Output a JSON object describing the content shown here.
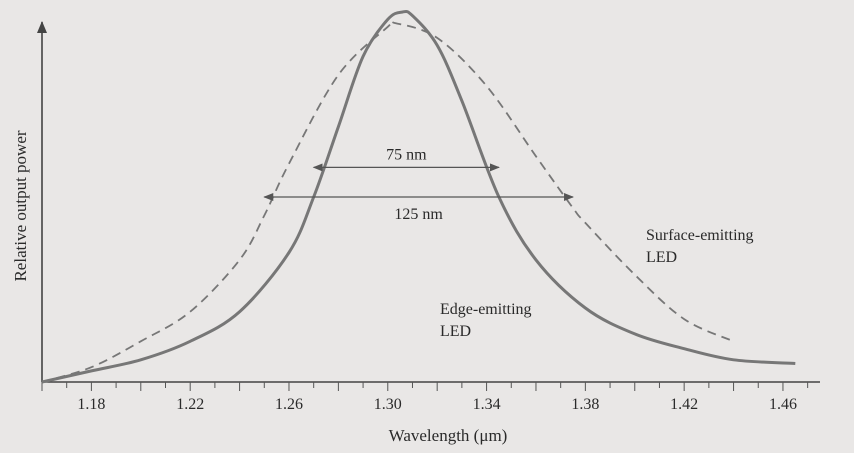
{
  "chart_data": {
    "type": "line",
    "title": "",
    "xlabel": "Wavelength (μm)",
    "ylabel": "Relative output power",
    "xlim": [
      1.16,
      1.475
    ],
    "ylim": [
      0,
      1.0
    ],
    "x_ticks": [
      1.18,
      1.22,
      1.26,
      1.3,
      1.34,
      1.38,
      1.42,
      1.46
    ],
    "x_tick_labels": [
      "1.18",
      "1.22",
      "1.26",
      "1.30",
      "1.34",
      "1.38",
      "1.42",
      "1.46"
    ],
    "grid": false,
    "series": [
      {
        "name": "Edge-emitting LED",
        "style": "solid",
        "color": "#777777",
        "x": [
          1.16,
          1.18,
          1.2,
          1.22,
          1.24,
          1.26,
          1.27,
          1.28,
          1.29,
          1.3,
          1.306,
          1.31,
          1.32,
          1.33,
          1.345,
          1.36,
          1.38,
          1.4,
          1.42,
          1.44,
          1.465
        ],
        "y": [
          0.0,
          0.03,
          0.06,
          0.11,
          0.19,
          0.35,
          0.5,
          0.69,
          0.88,
          0.98,
          1.0,
          0.99,
          0.91,
          0.76,
          0.5,
          0.33,
          0.2,
          0.13,
          0.09,
          0.06,
          0.05
        ]
      },
      {
        "name": "Surface-emitting LED",
        "style": "dashed",
        "color": "#777777",
        "x": [
          1.16,
          1.18,
          1.2,
          1.22,
          1.24,
          1.25,
          1.26,
          1.28,
          1.3,
          1.303,
          1.32,
          1.34,
          1.36,
          1.375,
          1.38,
          1.4,
          1.42,
          1.44
        ],
        "y": [
          0.0,
          0.04,
          0.11,
          0.19,
          0.33,
          0.45,
          0.59,
          0.83,
          0.96,
          0.97,
          0.93,
          0.8,
          0.61,
          0.47,
          0.43,
          0.29,
          0.17,
          0.11
        ]
      }
    ],
    "annotations": [
      {
        "label": "75 nm",
        "x_from": 1.27,
        "x_to": 1.345,
        "y": 0.58
      },
      {
        "label": "125 nm",
        "x_from": 1.25,
        "x_to": 1.375,
        "y": 0.5
      }
    ],
    "curve_labels": [
      {
        "lines": [
          "Edge-emitting",
          "LED"
        ],
        "series": 0
      },
      {
        "lines": [
          "Surface-emitting",
          "LED"
        ],
        "series": 1
      }
    ]
  }
}
